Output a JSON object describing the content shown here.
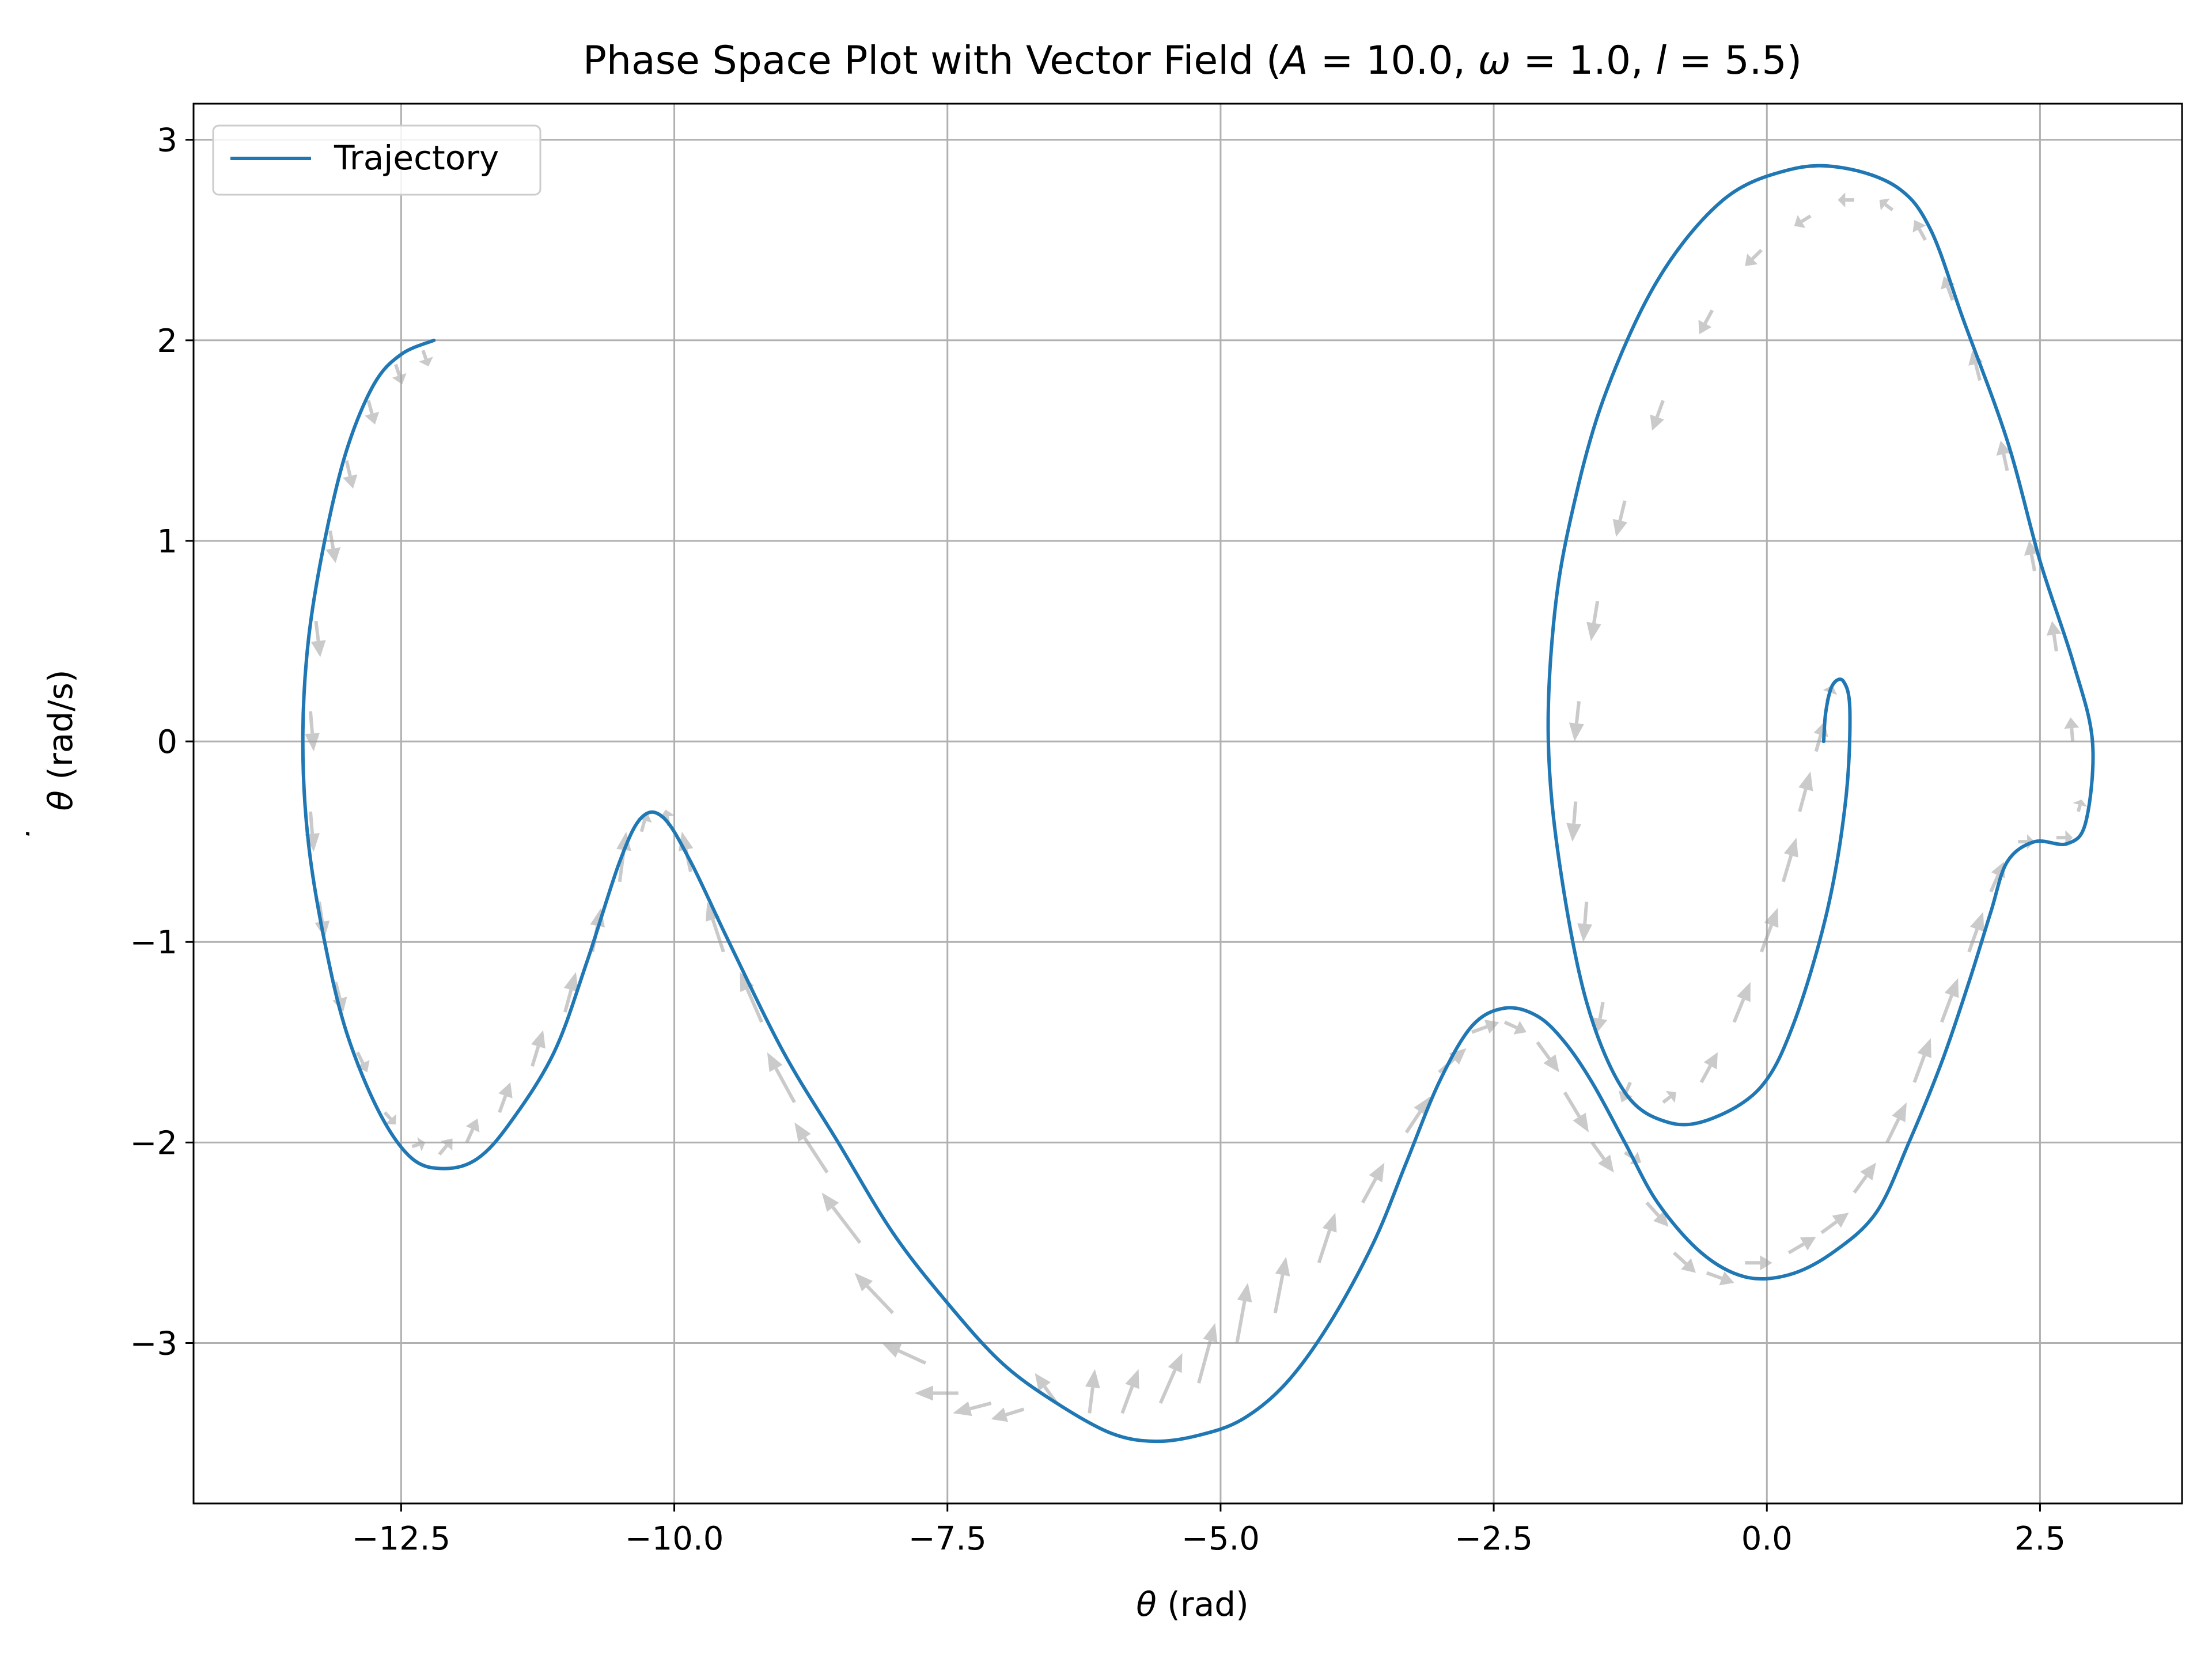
{
  "chart_data": {
    "type": "line",
    "title": "Phase Space Plot with Vector Field (A = 10.0, ω = 1.0, l = 5.5)",
    "title_parts": {
      "prefix": "Phase Space Plot with Vector Field (",
      "A_sym": "A",
      "A_val": " = 10.0, ",
      "w_sym": "ω",
      "w_val": " = 1.0, ",
      "l_sym": "l",
      "l_val": " = 5.5)"
    },
    "xlabel": "θ (rad)",
    "xlabel_parts": {
      "sym": "θ",
      "unit": " (rad)"
    },
    "ylabel": "θ̇ (rad/s)",
    "ylabel_parts": {
      "sym": "θ",
      "dot": "˙",
      "unit": " (rad/s)"
    },
    "xlim": [
      -14.4,
      3.8
    ],
    "ylim": [
      -3.8,
      3.18
    ],
    "xticks": [
      -12.5,
      -10.0,
      -7.5,
      -5.0,
      -2.5,
      0.0,
      2.5
    ],
    "xtick_labels": [
      "−12.5",
      "−10.0",
      "−7.5",
      "−5.0",
      "−2.5",
      "0.0",
      "2.5"
    ],
    "yticks": [
      3,
      2,
      1,
      0,
      -1,
      -2,
      -3
    ],
    "ytick_labels": [
      "3",
      "2",
      "1",
      "0",
      "−1",
      "−2",
      "−3"
    ],
    "grid": true,
    "legend": {
      "position": "top-left",
      "entries": [
        "Trajectory"
      ]
    },
    "series": [
      {
        "name": "Trajectory",
        "color": "#1f77b4",
        "points": [
          [
            0.52,
            0.0
          ],
          [
            0.54,
            0.15
          ],
          [
            0.6,
            0.28
          ],
          [
            0.7,
            0.3
          ],
          [
            0.76,
            0.15
          ],
          [
            0.72,
            -0.3
          ],
          [
            0.55,
            -0.85
          ],
          [
            0.25,
            -1.4
          ],
          [
            -0.05,
            -1.72
          ],
          [
            -0.5,
            -1.88
          ],
          [
            -0.9,
            -1.9
          ],
          [
            -1.3,
            -1.75
          ],
          [
            -1.65,
            -1.3
          ],
          [
            -1.9,
            -0.6
          ],
          [
            -2.0,
            0.0
          ],
          [
            -1.95,
            0.6
          ],
          [
            -1.8,
            1.1
          ],
          [
            -1.5,
            1.7
          ],
          [
            -1.0,
            2.3
          ],
          [
            -0.4,
            2.7
          ],
          [
            0.2,
            2.85
          ],
          [
            0.7,
            2.86
          ],
          [
            1.2,
            2.76
          ],
          [
            1.5,
            2.55
          ],
          [
            1.8,
            2.1
          ],
          [
            2.2,
            1.5
          ],
          [
            2.5,
            0.9
          ],
          [
            2.8,
            0.4
          ],
          [
            2.98,
            0.0
          ],
          [
            2.92,
            -0.4
          ],
          [
            2.75,
            -0.51
          ],
          [
            2.45,
            -0.5
          ],
          [
            2.2,
            -0.6
          ],
          [
            2.05,
            -0.85
          ],
          [
            1.85,
            -1.2
          ],
          [
            1.6,
            -1.6
          ],
          [
            1.3,
            -2.0
          ],
          [
            1.0,
            -2.35
          ],
          [
            0.6,
            -2.55
          ],
          [
            0.2,
            -2.66
          ],
          [
            -0.2,
            -2.67
          ],
          [
            -0.6,
            -2.55
          ],
          [
            -1.0,
            -2.3
          ],
          [
            -1.3,
            -2.0
          ],
          [
            -1.6,
            -1.7
          ],
          [
            -1.85,
            -1.5
          ],
          [
            -2.1,
            -1.37
          ],
          [
            -2.4,
            -1.33
          ],
          [
            -2.7,
            -1.42
          ],
          [
            -3.0,
            -1.7
          ],
          [
            -3.3,
            -2.1
          ],
          [
            -3.6,
            -2.5
          ],
          [
            -4.0,
            -2.9
          ],
          [
            -4.4,
            -3.2
          ],
          [
            -4.8,
            -3.38
          ],
          [
            -5.2,
            -3.46
          ],
          [
            -5.6,
            -3.49
          ],
          [
            -6.0,
            -3.45
          ],
          [
            -6.5,
            -3.3
          ],
          [
            -7.0,
            -3.1
          ],
          [
            -7.5,
            -2.8
          ],
          [
            -8.0,
            -2.45
          ],
          [
            -8.5,
            -2.0
          ],
          [
            -9.0,
            -1.55
          ],
          [
            -9.5,
            -1.0
          ],
          [
            -9.85,
            -0.6
          ],
          [
            -10.1,
            -0.38
          ],
          [
            -10.3,
            -0.38
          ],
          [
            -10.5,
            -0.6
          ],
          [
            -10.8,
            -1.1
          ],
          [
            -11.1,
            -1.55
          ],
          [
            -11.5,
            -1.9
          ],
          [
            -11.8,
            -2.08
          ],
          [
            -12.1,
            -2.13
          ],
          [
            -12.4,
            -2.08
          ],
          [
            -12.7,
            -1.85
          ],
          [
            -13.0,
            -1.45
          ],
          [
            -13.2,
            -1.0
          ],
          [
            -13.35,
            -0.5
          ],
          [
            -13.4,
            0.0
          ],
          [
            -13.35,
            0.5
          ],
          [
            -13.2,
            1.0
          ],
          [
            -13.0,
            1.45
          ],
          [
            -12.75,
            1.78
          ],
          [
            -12.5,
            1.93
          ],
          [
            -12.2,
            2.0
          ]
        ]
      }
    ],
    "vector_field": {
      "color": "#a0a0a0",
      "arrows": [
        [
          -12.3,
          1.95,
          0.05,
          -0.08
        ],
        [
          -12.55,
          1.88,
          0.06,
          -0.1
        ],
        [
          -12.8,
          1.7,
          0.06,
          -0.12
        ],
        [
          -13.0,
          1.4,
          0.06,
          -0.14
        ],
        [
          -13.15,
          1.05,
          0.05,
          -0.16
        ],
        [
          -13.28,
          0.6,
          0.04,
          -0.18
        ],
        [
          -13.33,
          0.15,
          0.03,
          -0.2
        ],
        [
          -13.33,
          -0.35,
          0.03,
          -0.2
        ],
        [
          -13.25,
          -0.8,
          0.05,
          -0.18
        ],
        [
          -13.1,
          -1.2,
          0.07,
          -0.15
        ],
        [
          -12.9,
          -1.55,
          0.09,
          -0.1
        ],
        [
          -12.65,
          -1.85,
          0.1,
          -0.06
        ],
        [
          -12.4,
          -2.02,
          0.12,
          0.02
        ],
        [
          -12.15,
          -2.06,
          0.12,
          0.08
        ],
        [
          -11.9,
          -2.0,
          0.1,
          0.12
        ],
        [
          -11.6,
          -1.85,
          0.1,
          0.15
        ],
        [
          -11.3,
          -1.62,
          0.1,
          0.18
        ],
        [
          -11.0,
          -1.35,
          0.1,
          0.2
        ],
        [
          -10.75,
          -1.05,
          0.08,
          0.22
        ],
        [
          -10.5,
          -0.7,
          0.06,
          0.25
        ],
        [
          -10.3,
          -0.45,
          0.05,
          0.1
        ],
        [
          -10.05,
          -0.42,
          -0.03,
          0.08
        ],
        [
          -9.85,
          -0.65,
          -0.08,
          0.2
        ],
        [
          -9.55,
          -1.05,
          -0.15,
          0.25
        ],
        [
          -9.2,
          -1.4,
          -0.2,
          0.25
        ],
        [
          -8.9,
          -1.8,
          -0.25,
          0.25
        ],
        [
          -8.6,
          -2.15,
          -0.3,
          0.25
        ],
        [
          -8.3,
          -2.5,
          -0.35,
          0.25
        ],
        [
          -8.0,
          -2.85,
          -0.35,
          0.2
        ],
        [
          -7.7,
          -3.1,
          -0.4,
          0.1
        ],
        [
          -7.4,
          -3.25,
          -0.4,
          0.0
        ],
        [
          -7.1,
          -3.3,
          -0.35,
          -0.05
        ],
        [
          -6.8,
          -3.33,
          -0.3,
          -0.05
        ],
        [
          -6.5,
          -3.3,
          -0.2,
          0.15
        ],
        [
          -6.2,
          -3.35,
          0.05,
          0.22
        ],
        [
          -5.9,
          -3.35,
          0.15,
          0.22
        ],
        [
          -5.55,
          -3.3,
          0.2,
          0.25
        ],
        [
          -5.2,
          -3.2,
          0.15,
          0.3
        ],
        [
          -4.85,
          -3.0,
          0.1,
          0.3
        ],
        [
          -4.5,
          -2.85,
          0.1,
          0.28
        ],
        [
          -4.1,
          -2.6,
          0.15,
          0.25
        ],
        [
          -3.7,
          -2.3,
          0.2,
          0.2
        ],
        [
          -3.3,
          -1.95,
          0.22,
          0.18
        ],
        [
          -3.0,
          -1.65,
          0.25,
          0.12
        ],
        [
          -2.7,
          -1.45,
          0.25,
          0.05
        ],
        [
          -2.4,
          -1.4,
          0.2,
          -0.05
        ],
        [
          -2.1,
          -1.5,
          0.2,
          -0.15
        ],
        [
          -1.85,
          -1.75,
          0.22,
          -0.2
        ],
        [
          -1.6,
          -2.0,
          0.2,
          -0.15
        ],
        [
          -1.3,
          -2.05,
          0.15,
          -0.05
        ],
        [
          -1.1,
          -2.3,
          0.2,
          -0.12
        ],
        [
          -0.85,
          -2.55,
          0.2,
          -0.1
        ],
        [
          -0.55,
          -2.65,
          0.25,
          -0.05
        ],
        [
          -0.2,
          -2.6,
          0.25,
          0.0
        ],
        [
          0.2,
          -2.55,
          0.25,
          0.08
        ],
        [
          0.5,
          -2.45,
          0.25,
          0.1
        ],
        [
          0.8,
          -2.25,
          0.2,
          0.15
        ],
        [
          1.1,
          -2.0,
          0.18,
          0.2
        ],
        [
          1.35,
          -1.7,
          0.15,
          0.22
        ],
        [
          1.6,
          -1.4,
          0.15,
          0.22
        ],
        [
          1.85,
          -1.05,
          0.13,
          0.2
        ],
        [
          2.05,
          -0.75,
          0.12,
          0.15
        ],
        [
          2.3,
          -0.5,
          0.15,
          0.0
        ],
        [
          2.65,
          -0.48,
          0.15,
          0.0
        ],
        [
          2.85,
          -0.35,
          0.03,
          0.06
        ],
        [
          2.8,
          0.0,
          -0.02,
          0.12
        ],
        [
          2.65,
          0.45,
          -0.04,
          0.15
        ],
        [
          2.45,
          0.85,
          -0.05,
          0.15
        ],
        [
          2.2,
          1.35,
          -0.06,
          0.15
        ],
        [
          1.95,
          1.8,
          -0.07,
          0.15
        ],
        [
          1.7,
          2.2,
          -0.08,
          0.12
        ],
        [
          1.45,
          2.5,
          -0.1,
          0.1
        ],
        [
          1.15,
          2.65,
          -0.12,
          0.05
        ],
        [
          0.8,
          2.7,
          -0.15,
          0.0
        ],
        [
          0.4,
          2.62,
          -0.15,
          -0.05
        ],
        [
          -0.05,
          2.45,
          -0.15,
          -0.08
        ],
        [
          -0.5,
          2.15,
          -0.12,
          -0.12
        ],
        [
          -0.95,
          1.7,
          -0.1,
          -0.15
        ],
        [
          -1.3,
          1.2,
          -0.08,
          -0.18
        ],
        [
          -1.55,
          0.7,
          -0.06,
          -0.2
        ],
        [
          -1.72,
          0.2,
          -0.04,
          -0.2
        ],
        [
          -1.75,
          -0.3,
          -0.03,
          -0.2
        ],
        [
          -1.65,
          -0.8,
          -0.03,
          -0.2
        ],
        [
          -1.5,
          -1.3,
          -0.05,
          -0.15
        ],
        [
          -1.25,
          -1.7,
          -0.08,
          -0.1
        ],
        [
          -0.95,
          -1.8,
          0.12,
          0.05
        ],
        [
          -0.6,
          -1.7,
          0.15,
          0.15
        ],
        [
          -0.3,
          -1.4,
          0.15,
          0.2
        ],
        [
          -0.05,
          -1.05,
          0.15,
          0.22
        ],
        [
          0.15,
          -0.7,
          0.12,
          0.22
        ],
        [
          0.3,
          -0.35,
          0.1,
          0.2
        ],
        [
          0.45,
          -0.05,
          0.08,
          0.15
        ],
        [
          0.55,
          0.2,
          0.05,
          0.08
        ]
      ]
    }
  }
}
